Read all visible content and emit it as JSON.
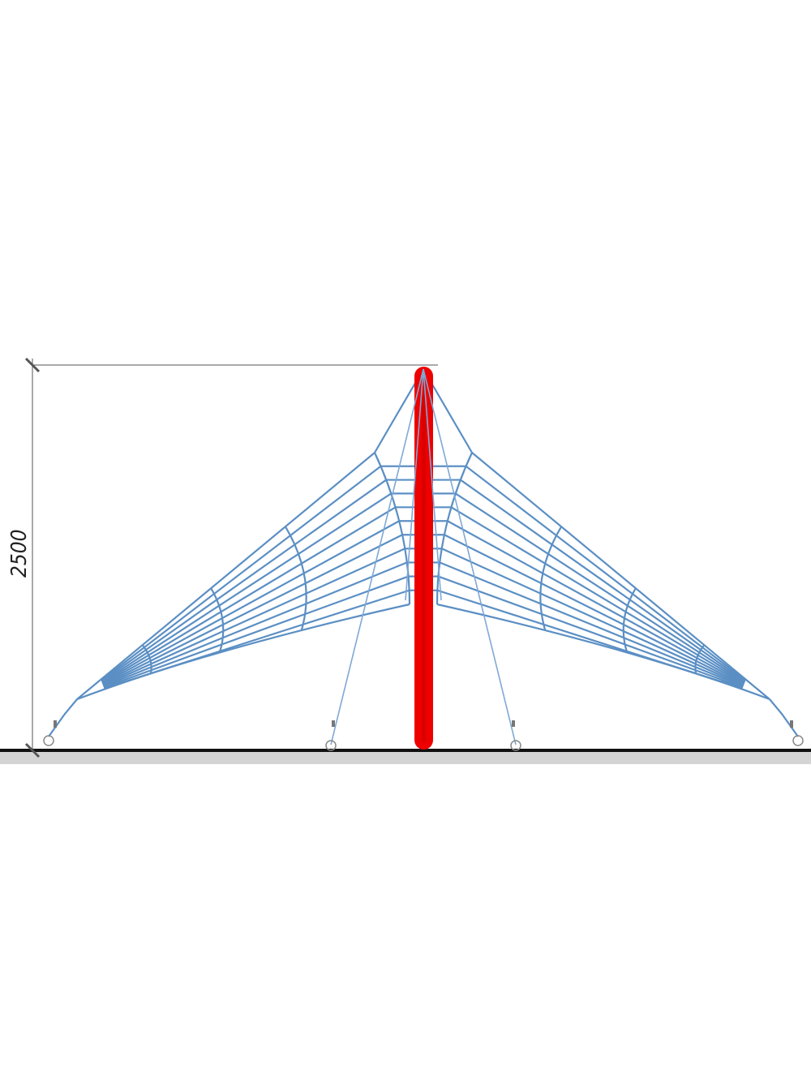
{
  "drawing": {
    "dimension_label": "2500",
    "colors": {
      "rope": "#5b8fc4",
      "pole": "#ee0000",
      "ground_line": "#111111",
      "ground_fill": "#d4d4d4",
      "dimension_line": "#555555"
    }
  }
}
